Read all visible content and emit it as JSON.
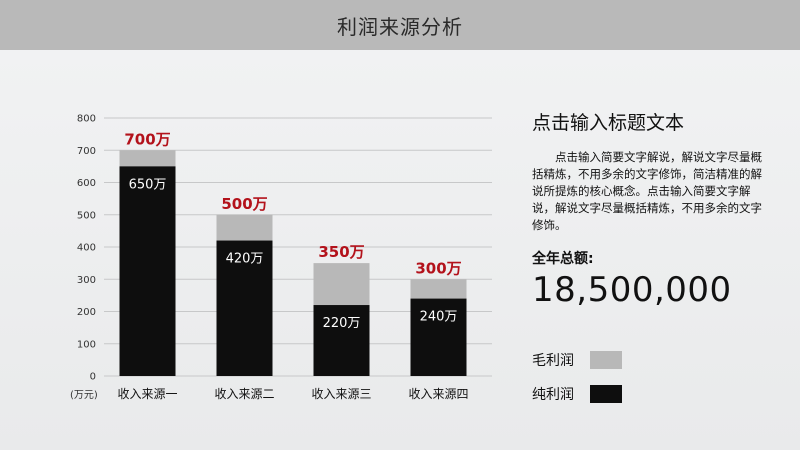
{
  "header": {
    "title": "利润来源分析"
  },
  "sidebar": {
    "title": "点击输入标题文本",
    "description": "点击输入简要文字解说，解说文字尽量概括精炼，不用多余的文字修饰，简洁精准的解说所提炼的核心概念。点击输入简要文字解说，解说文字尽量概括精炼，不用多余的文字修饰。",
    "total_caption": "全年总额:",
    "total_value": "18,500,000"
  },
  "colors": {
    "gross": "#b8b8b8",
    "net": "#0e0e0e",
    "total_label": "#b3121b",
    "header_bg": "#b9b9b9"
  },
  "chart_data": {
    "type": "bar",
    "categories": [
      "收入来源一",
      "收入来源二",
      "收入来源三",
      "收入来源四"
    ],
    "series": [
      {
        "name": "毛利润",
        "values": [
          700,
          500,
          350,
          300
        ],
        "labels": [
          "700万",
          "500万",
          "350万",
          "300万"
        ]
      },
      {
        "name": "纯利润",
        "values": [
          650,
          420,
          220,
          240
        ],
        "labels": [
          "650万",
          "420万",
          "220万",
          "240万"
        ]
      }
    ],
    "y_unit": "(万元)",
    "ylim": [
      0,
      800
    ],
    "yticks": [
      0,
      100,
      200,
      300,
      400,
      500,
      600,
      700,
      800
    ],
    "grid": true,
    "legend_position": "right"
  }
}
